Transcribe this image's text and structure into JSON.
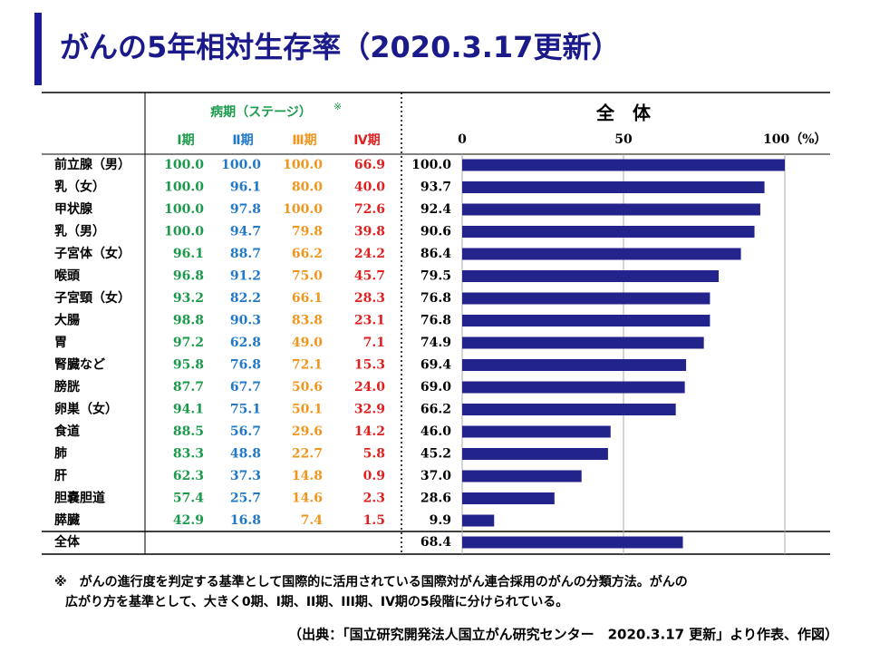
{
  "title": "がんの5年相対生存率（2020.3.17更新）",
  "stage_table": {
    "header": "病期（ステージ）",
    "note_mark": "※",
    "columns": [
      "Ⅰ期",
      "Ⅱ期",
      "Ⅲ期",
      "Ⅳ期"
    ],
    "colors": [
      "#1a9a4a",
      "#1f78c8",
      "#f0961e",
      "#e02020"
    ],
    "rows": [
      [
        "100.0",
        "100.0",
        "100.0",
        "66.9"
      ],
      [
        "100.0",
        "96.1",
        "80.0",
        "40.0"
      ],
      [
        "100.0",
        "97.8",
        "100.0",
        "72.6"
      ],
      [
        "100.0",
        "94.7",
        "79.8",
        "39.8"
      ],
      [
        "96.1",
        "88.7",
        "66.2",
        "24.2"
      ],
      [
        "96.8",
        "91.2",
        "75.0",
        "45.7"
      ],
      [
        "93.2",
        "82.2",
        "66.1",
        "28.3"
      ],
      [
        "98.8",
        "90.3",
        "83.8",
        "23.1"
      ],
      [
        "97.2",
        "62.8",
        "49.0",
        "7.1"
      ],
      [
        "95.8",
        "76.8",
        "72.1",
        "15.3"
      ],
      [
        "87.7",
        "67.7",
        "50.6",
        "24.0"
      ],
      [
        "94.1",
        "75.1",
        "50.1",
        "32.9"
      ],
      [
        "88.5",
        "56.7",
        "29.6",
        "14.2"
      ],
      [
        "83.3",
        "48.8",
        "22.7",
        "5.8"
      ],
      [
        "62.3",
        "37.3",
        "14.8",
        "0.9"
      ],
      [
        "57.4",
        "25.7",
        "14.6",
        "2.3"
      ],
      [
        "42.9",
        "16.8",
        "7.4",
        "1.5"
      ]
    ]
  },
  "chart_data": {
    "type": "bar",
    "orientation": "horizontal",
    "title": "全　体",
    "categories": [
      "前立腺（男）",
      "乳（女）",
      "甲状腺",
      "乳（男）",
      "子宮体（女）",
      "喉頭",
      "子宮頸（女）",
      "大腸",
      "胃",
      "腎臓など",
      "膀胱",
      "卵巣（女）",
      "食道",
      "肺",
      "肝",
      "胆嚢胆道",
      "膵臓",
      "全体"
    ],
    "values": [
      100.0,
      93.7,
      92.4,
      90.6,
      86.4,
      79.5,
      76.8,
      76.8,
      74.9,
      69.4,
      69.0,
      66.2,
      46.0,
      45.2,
      37.0,
      28.6,
      9.9,
      68.4
    ],
    "value_labels": [
      "100.0",
      "93.7",
      "92.4",
      "90.6",
      "86.4",
      "79.5",
      "76.8",
      "76.8",
      "74.9",
      "69.4",
      "69.0",
      "66.2",
      "46.0",
      "45.2",
      "37.0",
      "28.6",
      "9.9",
      "68.4"
    ],
    "color": "#23238c",
    "xlim": [
      0,
      100
    ],
    "xticks": [
      0,
      50,
      {
        "value": 100,
        "label": "100（%）"
      }
    ],
    "grid": true
  },
  "note": [
    "※　がんの進行度を判定する基準として国際的に活用されている国際対がん連合採用のがんの分類方法。がんの",
    "広がり方を基準として、大きく0期、I期、II期、III期、IV期の5段階に分けられている。"
  ],
  "source": "（出典：「国立研究開発法人国立がん研究センター　2020.3.17 更新」より作表、作図）"
}
